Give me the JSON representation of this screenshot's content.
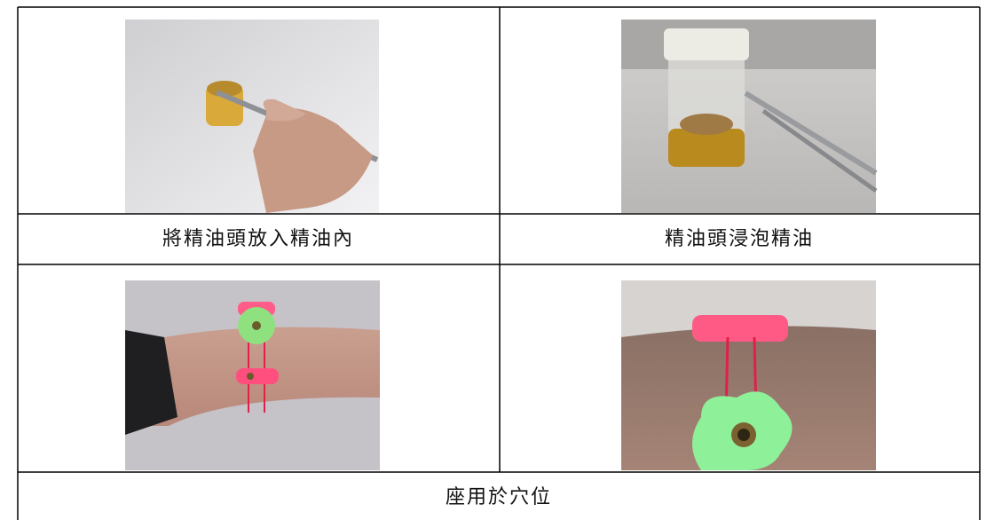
{
  "table": {
    "captions": [
      "將精油頭放入精油內",
      "精油頭浸泡精油",
      "座用於穴位"
    ]
  }
}
